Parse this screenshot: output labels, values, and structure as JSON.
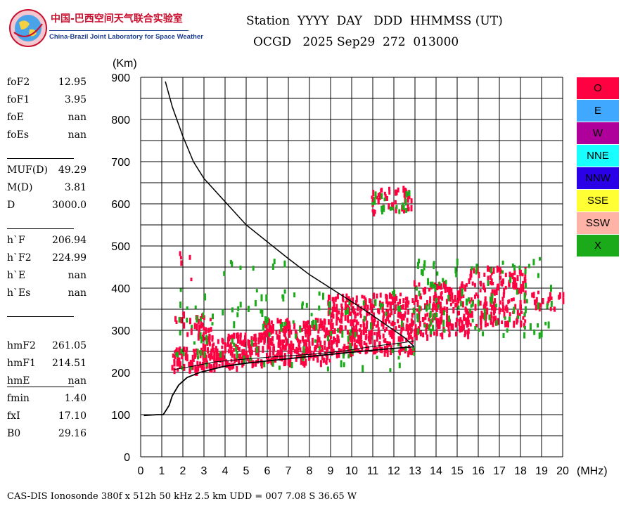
{
  "logo": {
    "title": "中国-巴西空间天气联合实验室",
    "subtitle": "China-Brazil Joint Laboratory for Space Weather"
  },
  "header": {
    "line1": "Station  YYYY  DAY   DDD  HHMMSS (UT)",
    "line2": "OCGD   2025 Sep29  272  013000"
  },
  "params": [
    {
      "label": "foF2",
      "value": "12.95"
    },
    {
      "label": "foF1",
      "value": "3.95"
    },
    {
      "label": "foE",
      "value": "nan"
    },
    {
      "label": "foEs",
      "value": "nan"
    },
    {
      "label": "MUF(D)",
      "value": "49.29"
    },
    {
      "label": "M(D)",
      "value": "3.81"
    },
    {
      "label": "D",
      "value": "3000.0"
    },
    {
      "label": "h`F",
      "value": "206.94"
    },
    {
      "label": "h`F2",
      "value": "224.99"
    },
    {
      "label": "h`E",
      "value": "nan"
    },
    {
      "label": "h`Es",
      "value": "nan"
    },
    {
      "label": "hmF2",
      "value": "261.05"
    },
    {
      "label": "hmF1",
      "value": "214.51"
    },
    {
      "label": "hmE",
      "value": "nan"
    },
    {
      "label": "fmin",
      "value": "1.40"
    },
    {
      "label": "fxI",
      "value": "17.10"
    },
    {
      "label": "B0",
      "value": "29.16"
    }
  ],
  "legend": [
    {
      "label": "O",
      "color": "#ff0040"
    },
    {
      "label": "E",
      "color": "#40a8ff"
    },
    {
      "label": "W",
      "color": "#b0009c"
    },
    {
      "label": "NNE",
      "color": "#19ffff"
    },
    {
      "label": "NNW",
      "color": "#2a00e8"
    },
    {
      "label": "SSE",
      "color": "#ffff33"
    },
    {
      "label": "SSW",
      "color": "#ffb3a6"
    },
    {
      "label": "X",
      "color": "#1aaa1a"
    }
  ],
  "footer": "CAS-DIS Ionosonde 380f x 512h 50 kHz 2.5 km UDD = 007 7.08 S 36.65 W",
  "chart_data": {
    "type": "scatter",
    "xlabel": "(MHz)",
    "ylabel": "(Km)",
    "xlim": [
      0,
      20
    ],
    "ylim": [
      0,
      900
    ],
    "x_ticks": [
      0,
      1,
      2,
      3,
      4,
      5,
      6,
      7,
      8,
      9,
      10,
      11,
      12,
      13,
      14,
      15,
      16,
      17,
      18,
      19,
      20
    ],
    "y_ticks": [
      0,
      100,
      200,
      300,
      400,
      500,
      600,
      700,
      800,
      900
    ],
    "grid": true,
    "series": [
      {
        "name": "O",
        "color": "#ff0040",
        "bands": [
          {
            "f0": 1.4,
            "f1": 3.0,
            "h0": 205,
            "h1": 262,
            "density": 1.0
          },
          {
            "f0": 2.8,
            "f1": 6.0,
            "h0": 215,
            "h1": 295,
            "density": 1.0
          },
          {
            "f0": 5.8,
            "f1": 9.0,
            "h0": 225,
            "h1": 330,
            "density": 1.0
          },
          {
            "f0": 8.8,
            "f1": 12.9,
            "h0": 250,
            "h1": 390,
            "density": 0.9
          },
          {
            "f0": 12.9,
            "f1": 15.5,
            "h0": 290,
            "h1": 420,
            "density": 0.75
          },
          {
            "f0": 15.5,
            "f1": 18.2,
            "h0": 315,
            "h1": 455,
            "density": 0.6
          },
          {
            "f0": 18.5,
            "f1": 20.0,
            "h0": 355,
            "h1": 395,
            "density": 0.55
          },
          {
            "f0": 1.6,
            "f1": 3.3,
            "h0": 290,
            "h1": 345,
            "density": 0.45
          },
          {
            "f0": 10.9,
            "f1": 12.8,
            "h0": 585,
            "h1": 645,
            "density": 0.55
          },
          {
            "f0": 1.8,
            "f1": 2.4,
            "h0": 420,
            "h1": 490,
            "density": 0.15
          }
        ]
      },
      {
        "name": "X",
        "color": "#1aaa1a",
        "bands": [
          {
            "f0": 1.6,
            "f1": 13.0,
            "h0": 210,
            "h1": 400,
            "density": 0.08
          },
          {
            "f0": 13.0,
            "f1": 19.5,
            "h0": 290,
            "h1": 475,
            "density": 0.12
          },
          {
            "f0": 2.5,
            "f1": 7.0,
            "h0": 430,
            "h1": 480,
            "density": 0.05
          },
          {
            "f0": 10.9,
            "f1": 12.8,
            "h0": 585,
            "h1": 640,
            "density": 0.25
          }
        ]
      }
    ],
    "profile": [
      [
        1.07,
        100
      ],
      [
        1.2,
        110
      ],
      [
        1.35,
        122
      ],
      [
        1.5,
        145
      ],
      [
        1.8,
        170
      ],
      [
        2.2,
        188
      ],
      [
        2.8,
        200
      ],
      [
        3.95,
        214.51
      ],
      [
        5.0,
        222
      ],
      [
        6.5,
        230
      ],
      [
        8.0,
        238
      ],
      [
        10.0,
        248
      ],
      [
        11.5,
        255
      ],
      [
        12.95,
        261.05
      ]
    ],
    "trace_left": [
      [
        0.15,
        98
      ],
      [
        0.8,
        100
      ],
      [
        1.07,
        100
      ]
    ],
    "virtual_height_curve": [
      [
        1.17,
        890
      ],
      [
        1.5,
        830
      ],
      [
        2.0,
        760
      ],
      [
        2.5,
        700
      ],
      [
        3.0,
        660
      ],
      [
        4.0,
        605
      ],
      [
        5.0,
        550
      ],
      [
        6.0,
        510
      ],
      [
        7.0,
        470
      ],
      [
        8.0,
        432
      ],
      [
        9.0,
        400
      ],
      [
        10.0,
        368
      ],
      [
        11.0,
        335
      ],
      [
        12.0,
        300
      ],
      [
        12.5,
        283
      ],
      [
        12.95,
        262
      ]
    ],
    "o_trace": [
      [
        1.6,
        207
      ],
      [
        2.5,
        215
      ],
      [
        3.5,
        225
      ],
      [
        5.0,
        232
      ],
      [
        6.5,
        238
      ],
      [
        8.0,
        243
      ],
      [
        9.5,
        250
      ],
      [
        10.5,
        258
      ],
      [
        11.5,
        265
      ],
      [
        12.5,
        271
      ],
      [
        12.95,
        275
      ]
    ]
  }
}
